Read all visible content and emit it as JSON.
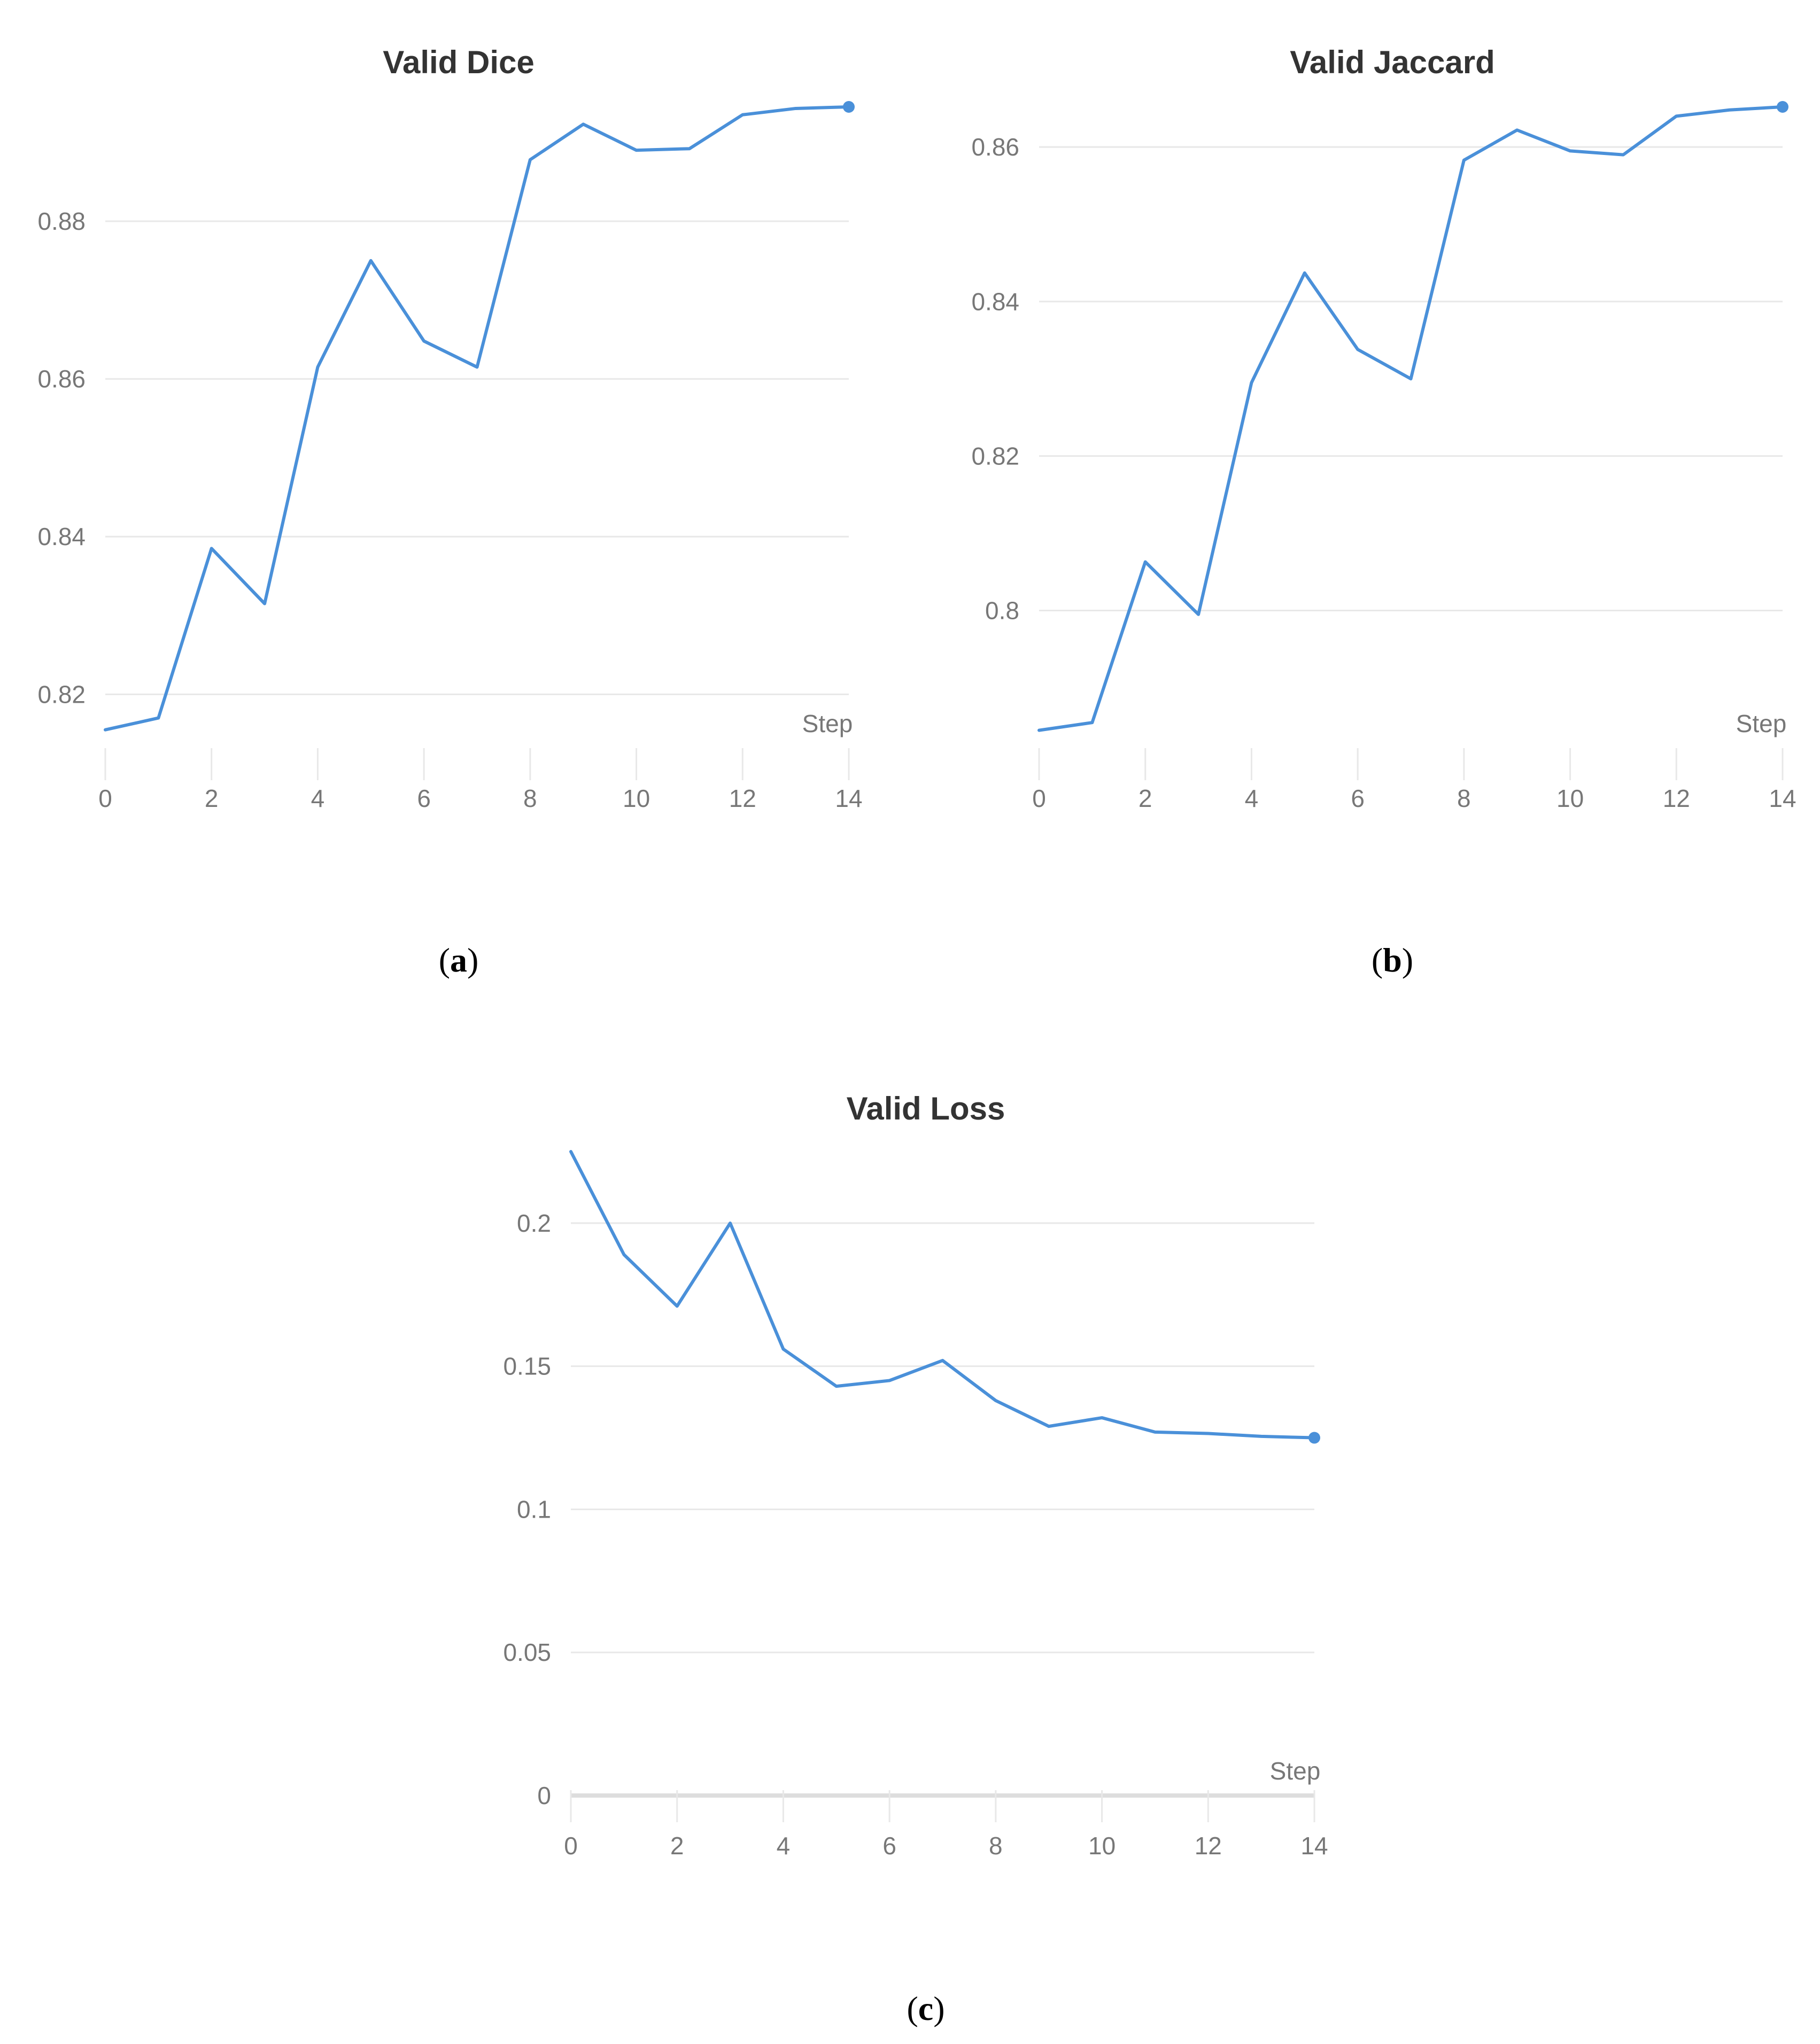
{
  "figure": {
    "captions": [
      "a",
      "b",
      "c"
    ]
  },
  "colors": {
    "series": "#4a90d9",
    "grid": "#e8e8e8",
    "text": "#777777"
  },
  "chart_data": [
    {
      "type": "line",
      "title": "Valid Dice",
      "xlabel": "Step",
      "ylabel": "",
      "x": [
        0,
        1,
        2,
        3,
        4,
        5,
        6,
        7,
        8,
        9,
        10,
        11,
        12,
        13,
        14
      ],
      "series": [
        {
          "values": [
            0.8155,
            0.817,
            0.8385,
            0.8315,
            0.8615,
            0.875,
            0.8648,
            0.8615,
            0.8878,
            0.8923,
            0.889,
            0.8892,
            0.8935,
            0.8943,
            0.8945
          ]
        }
      ],
      "xlim": [
        0,
        14
      ],
      "ylim": [
        0.8125,
        0.8945
      ],
      "xticks": [
        "0",
        "2",
        "4",
        "6",
        "8",
        "10",
        "12",
        "14"
      ],
      "yticks": [
        "0.82",
        "0.84",
        "0.86",
        "0.88"
      ],
      "grid": true,
      "end_marker": true
    },
    {
      "type": "line",
      "title": "Valid Jaccard",
      "xlabel": "Step",
      "ylabel": "",
      "x": [
        0,
        1,
        2,
        3,
        4,
        5,
        6,
        7,
        8,
        9,
        10,
        11,
        12,
        13,
        14
      ],
      "series": [
        {
          "values": [
            0.7845,
            0.7855,
            0.8063,
            0.7995,
            0.8295,
            0.8437,
            0.8338,
            0.83,
            0.8583,
            0.8622,
            0.8595,
            0.859,
            0.864,
            0.8648,
            0.8652
          ]
        }
      ],
      "xlim": [
        0,
        14
      ],
      "ylim": [
        0.7815,
        0.8652
      ],
      "xticks": [
        "0",
        "2",
        "4",
        "6",
        "8",
        "10",
        "12",
        "14"
      ],
      "yticks": [
        "0.8",
        "0.82",
        "0.84",
        "0.86"
      ],
      "grid": true,
      "end_marker": true
    },
    {
      "type": "line",
      "title": "Valid Loss",
      "xlabel": "Step",
      "ylabel": "",
      "x": [
        0,
        1,
        2,
        3,
        4,
        5,
        6,
        7,
        8,
        9,
        10,
        11,
        12,
        13,
        14
      ],
      "series": [
        {
          "values": [
            0.225,
            0.189,
            0.171,
            0.2,
            0.156,
            0.143,
            0.145,
            0.152,
            0.138,
            0.129,
            0.132,
            0.127,
            0.1265,
            0.1255,
            0.125
          ]
        }
      ],
      "xlim": [
        0,
        14
      ],
      "ylim": [
        0,
        0.225
      ],
      "xticks": [
        "0",
        "2",
        "4",
        "6",
        "8",
        "10",
        "12",
        "14"
      ],
      "yticks": [
        "0",
        "0.05",
        "0.1",
        "0.15",
        "0.2"
      ],
      "grid": true,
      "baseline": true,
      "end_marker": true
    }
  ]
}
